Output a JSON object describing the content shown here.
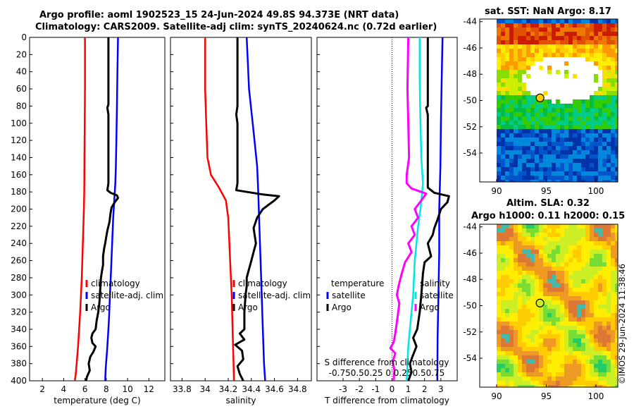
{
  "titles": {
    "main_line1": "Argo profile: aoml 1902523_15 24-Jun-2024 49.8S 94.373E (NRT data)",
    "main_line2": "Climatology: CARS2009. Satellite-adj clim: synTS_20240624.nc (0.72d earlier)",
    "sst_map": "sat. SST: NaN Argo: 8.17",
    "sla_map_line1": "Altim. SLA: 0.32",
    "sla_map_line2": "Argo h1000: 0.11 h2000: 0.15"
  },
  "watermark": "©IMOS 29-Jun-2024 11:38:46",
  "colors": {
    "climatology": "#ff0000",
    "satellite": "#0000ff",
    "argo": "#000000",
    "sal_sat": "#00e5e5",
    "sal_diff": "#ff00ff"
  },
  "depth_axis": {
    "ticks": [
      0,
      20,
      40,
      60,
      80,
      100,
      120,
      140,
      160,
      180,
      200,
      220,
      240,
      260,
      280,
      300,
      320,
      340,
      360,
      380,
      400
    ],
    "range": [
      0,
      400
    ]
  },
  "legends": {
    "temperature": [
      "climatology",
      "satellite-adj. clim",
      "Argo"
    ],
    "salinity": [
      "climatology",
      "satellite-adj. clim",
      "Argo"
    ],
    "diff_temp_title": "temperature",
    "diff_sal_title": "salinity",
    "diff_temp": [
      "satellite",
      "Argo"
    ],
    "diff_sal": [
      "satellite",
      "Argo"
    ]
  },
  "chart_data": [
    {
      "type": "line",
      "id": "temperature",
      "title": "",
      "xlabel": "temperature (deg C)",
      "ylabel": "",
      "xlim": [
        0.8,
        13.5
      ],
      "ylim": [
        400,
        0
      ],
      "x_ticks": [
        2,
        4,
        6,
        8,
        10,
        12
      ],
      "series": [
        {
          "name": "climatology",
          "points": [
            [
              6.0,
              0
            ],
            [
              6.0,
              60
            ],
            [
              5.98,
              100
            ],
            [
              5.95,
              140
            ],
            [
              5.93,
              180
            ],
            [
              5.9,
              200
            ],
            [
              5.8,
              240
            ],
            [
              5.7,
              280
            ],
            [
              5.55,
              320
            ],
            [
              5.35,
              360
            ],
            [
              5.15,
              390
            ],
            [
              5.05,
              400
            ]
          ]
        },
        {
          "name": "satellite-adj. clim",
          "points": [
            [
              9.1,
              0
            ],
            [
              9.05,
              40
            ],
            [
              9.0,
              80
            ],
            [
              8.95,
              120
            ],
            [
              8.9,
              150
            ],
            [
              8.85,
              170
            ],
            [
              8.75,
              190
            ],
            [
              8.65,
              210
            ],
            [
              8.55,
              240
            ],
            [
              8.45,
              270
            ],
            [
              8.35,
              300
            ],
            [
              8.25,
              330
            ],
            [
              8.1,
              360
            ],
            [
              7.95,
              385
            ],
            [
              7.9,
              400
            ]
          ]
        },
        {
          "name": "Argo",
          "points": [
            [
              8.2,
              0
            ],
            [
              8.2,
              60
            ],
            [
              8.2,
              78
            ],
            [
              8.1,
              82
            ],
            [
              8.2,
              90
            ],
            [
              8.2,
              120
            ],
            [
              8.2,
              150
            ],
            [
              8.2,
              170
            ],
            [
              8.1,
              178
            ],
            [
              8.4,
              181
            ],
            [
              9.0,
              184
            ],
            [
              9.1,
              187
            ],
            [
              8.8,
              192
            ],
            [
              8.5,
              198
            ],
            [
              8.4,
              205
            ],
            [
              8.3,
              215
            ],
            [
              8.1,
              225
            ],
            [
              8.0,
              232
            ],
            [
              7.9,
              240
            ],
            [
              7.8,
              246
            ],
            [
              7.7,
              255
            ],
            [
              7.7,
              265
            ],
            [
              7.6,
              272
            ],
            [
              7.5,
              280
            ],
            [
              7.45,
              290
            ],
            [
              7.4,
              300
            ],
            [
              7.35,
              310
            ],
            [
              7.25,
              320
            ],
            [
              7.1,
              330
            ],
            [
              7.0,
              340
            ],
            [
              6.7,
              345
            ],
            [
              6.6,
              350
            ],
            [
              6.7,
              356
            ],
            [
              7.0,
              360
            ],
            [
              6.8,
              366
            ],
            [
              6.5,
              372
            ],
            [
              6.35,
              380
            ],
            [
              6.45,
              388
            ],
            [
              6.2,
              395
            ],
            [
              6.1,
              400
            ]
          ]
        }
      ]
    },
    {
      "type": "line",
      "id": "salinity",
      "title": "",
      "xlabel": "salinity",
      "ylabel": "",
      "xlim": [
        33.7,
        34.92
      ],
      "ylim": [
        400,
        0
      ],
      "x_ticks": [
        33.8,
        34,
        34.2,
        34.4,
        34.6,
        34.8
      ],
      "series": [
        {
          "name": "climatology",
          "points": [
            [
              34.0,
              0
            ],
            [
              34.0,
              60
            ],
            [
              34.01,
              100
            ],
            [
              34.02,
              140
            ],
            [
              34.05,
              160
            ],
            [
              34.12,
              175
            ],
            [
              34.18,
              190
            ],
            [
              34.2,
              210
            ],
            [
              34.21,
              240
            ],
            [
              34.22,
              270
            ],
            [
              34.23,
              300
            ],
            [
              34.24,
              350
            ],
            [
              34.25,
              400
            ]
          ]
        },
        {
          "name": "satellite-adj. clim",
          "points": [
            [
              34.36,
              0
            ],
            [
              34.38,
              60
            ],
            [
              34.42,
              110
            ],
            [
              34.45,
              150
            ],
            [
              34.46,
              180
            ],
            [
              34.47,
              220
            ],
            [
              34.48,
              260
            ],
            [
              34.49,
              300
            ],
            [
              34.5,
              340
            ],
            [
              34.51,
              380
            ],
            [
              34.52,
              400
            ]
          ]
        },
        {
          "name": "Argo",
          "points": [
            [
              34.28,
              0
            ],
            [
              34.28,
              60
            ],
            [
              34.28,
              80
            ],
            [
              34.27,
              90
            ],
            [
              34.28,
              100
            ],
            [
              34.28,
              150
            ],
            [
              34.28,
              170
            ],
            [
              34.27,
              178
            ],
            [
              34.5,
              183
            ],
            [
              34.64,
              185
            ],
            [
              34.6,
              190
            ],
            [
              34.5,
              200
            ],
            [
              34.45,
              210
            ],
            [
              34.42,
              222
            ],
            [
              34.44,
              240
            ],
            [
              34.42,
              250
            ],
            [
              34.4,
              260
            ],
            [
              34.38,
              270
            ],
            [
              34.36,
              280
            ],
            [
              34.36,
              290
            ],
            [
              34.35,
              300
            ],
            [
              34.34,
              320
            ],
            [
              34.34,
              340
            ],
            [
              34.3,
              345
            ],
            [
              34.34,
              352
            ],
            [
              34.26,
              358
            ],
            [
              34.32,
              365
            ],
            [
              34.33,
              375
            ],
            [
              34.28,
              383
            ],
            [
              34.3,
              392
            ],
            [
              34.33,
              400
            ]
          ]
        }
      ]
    },
    {
      "type": "line",
      "id": "difference",
      "title": "",
      "xlabel": "T difference from climatology",
      "ylabel": "",
      "xlim": [
        -4.6,
        4.0
      ],
      "ylim": [
        400,
        0
      ],
      "x_ticks": [
        -3,
        -2,
        -1,
        0,
        1,
        2,
        3
      ],
      "secondary_xlabel": "S difference from climatology",
      "secondary_ticks": [
        -0.75,
        -0.5,
        0.25,
        0,
        0.25,
        0.5,
        0.75
      ],
      "secondary_tick_text": "-0.750.50.25  0  0.250.50.75",
      "series": [
        {
          "name": "temperature satellite",
          "points": [
            [
              3.1,
              0
            ],
            [
              3.05,
              50
            ],
            [
              3.0,
              100
            ],
            [
              2.97,
              150
            ],
            [
              2.9,
              200
            ],
            [
              2.9,
              250
            ],
            [
              2.85,
              300
            ],
            [
              2.8,
              350
            ],
            [
              2.78,
              400
            ]
          ]
        },
        {
          "name": "temperature Argo",
          "points": [
            [
              2.2,
              0
            ],
            [
              2.2,
              80
            ],
            [
              2.1,
              82
            ],
            [
              2.2,
              90
            ],
            [
              2.2,
              175
            ],
            [
              2.6,
              181
            ],
            [
              3.5,
              185
            ],
            [
              3.4,
              192
            ],
            [
              3.0,
              200
            ],
            [
              2.8,
              212
            ],
            [
              2.6,
              222
            ],
            [
              2.5,
              230
            ],
            [
              2.2,
              240
            ],
            [
              2.4,
              255
            ],
            [
              2.0,
              262
            ],
            [
              1.9,
              275
            ],
            [
              1.8,
              300
            ],
            [
              1.7,
              320
            ],
            [
              1.55,
              340
            ],
            [
              1.3,
              350
            ],
            [
              1.5,
              360
            ],
            [
              1.25,
              372
            ],
            [
              1.1,
              380
            ],
            [
              1.2,
              390
            ],
            [
              1.0,
              400
            ]
          ]
        },
        {
          "name": "salinity satellite",
          "points": [
            [
              1.7,
              0
            ],
            [
              1.7,
              50
            ],
            [
              1.75,
              100
            ],
            [
              1.8,
              140
            ],
            [
              1.9,
              170
            ],
            [
              1.85,
              180
            ],
            [
              1.8,
              190
            ],
            [
              1.75,
              200
            ],
            [
              1.6,
              220
            ],
            [
              1.5,
              240
            ],
            [
              1.4,
              260
            ],
            [
              1.35,
              280
            ],
            [
              1.3,
              300
            ],
            [
              1.2,
              320
            ],
            [
              1.1,
              340
            ],
            [
              1.0,
              360
            ],
            [
              0.95,
              380
            ],
            [
              0.9,
              400
            ]
          ]
        },
        {
          "name": "salinity Argo",
          "points": [
            [
              1.0,
              0
            ],
            [
              0.95,
              60
            ],
            [
              1.0,
              100
            ],
            [
              1.05,
              140
            ],
            [
              0.9,
              160
            ],
            [
              0.9,
              170
            ],
            [
              1.2,
              176
            ],
            [
              2.1,
              182
            ],
            [
              1.8,
              190
            ],
            [
              1.4,
              200
            ],
            [
              1.6,
              210
            ],
            [
              1.2,
              220
            ],
            [
              1.4,
              230
            ],
            [
              1.0,
              240
            ],
            [
              1.2,
              250
            ],
            [
              0.8,
              262
            ],
            [
              0.6,
              275
            ],
            [
              0.4,
              290
            ],
            [
              0.3,
              300
            ],
            [
              0.45,
              310
            ],
            [
              0.35,
              325
            ],
            [
              0.2,
              345
            ],
            [
              0.1,
              355
            ],
            [
              -0.1,
              362
            ],
            [
              0.2,
              368
            ],
            [
              0.05,
              378
            ],
            [
              0.15,
              388
            ],
            [
              0.1,
              400
            ]
          ]
        }
      ]
    },
    {
      "type": "heatmap",
      "id": "sst_map",
      "title": "sat. SST: NaN Argo: 8.17",
      "xlim": [
        88.3,
        102.2
      ],
      "ylim": [
        -56.2,
        -43.8
      ],
      "x_ticks": [
        90,
        95,
        100
      ],
      "y_ticks": [
        -44,
        -46,
        -48,
        -50,
        -52,
        -54
      ],
      "argo_position": [
        94.37,
        -49.8
      ],
      "color_bands": [
        {
          "lat_from": -44,
          "lat_to": -45.5,
          "colors": [
            "#cc1a00",
            "#e05000",
            "#ee7700"
          ]
        },
        {
          "lat_from": -45.5,
          "lat_to": -47.5,
          "colors": [
            "#ff9900",
            "#ffcc00",
            "#ffee00"
          ]
        },
        {
          "lat_from": -47.5,
          "lat_to": -49.5,
          "colors": [
            "#ccee00",
            "#88dd00",
            "#ffdd00"
          ]
        },
        {
          "lat_from": -49.5,
          "lat_to": -52,
          "colors": [
            "#33cc00",
            "#00bb44",
            "#00cc88"
          ]
        },
        {
          "lat_from": -52,
          "lat_to": -56,
          "colors": [
            "#0088dd",
            "#0055cc",
            "#0033aa"
          ]
        }
      ]
    },
    {
      "type": "heatmap",
      "id": "sla_map",
      "title": "Altim. SLA: 0.32 / Argo h1000: 0.11 h2000: 0.15",
      "xlim": [
        88.3,
        102.2
      ],
      "ylim": [
        -56.2,
        -43.8
      ],
      "x_ticks": [
        90,
        95,
        100
      ],
      "y_ticks": [
        -44,
        -46,
        -48,
        -50,
        -52,
        -54
      ],
      "argo_position": [
        94.37,
        -49.8
      ],
      "palette": [
        "#22cc66",
        "#77dd33",
        "#ccee22",
        "#ffee00",
        "#ffcc00",
        "#ee9922",
        "#dd7733",
        "#44bbaa"
      ]
    }
  ]
}
